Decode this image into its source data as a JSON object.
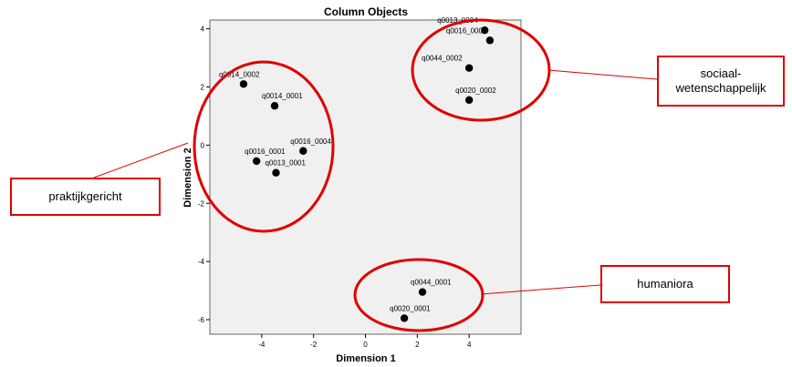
{
  "chart_data": {
    "type": "scatter",
    "title": "Column Objects",
    "xlabel": "Dimension 1",
    "ylabel": "Dimension 2",
    "xlim": [
      -6,
      6
    ],
    "ylim": [
      -6.5,
      4.3
    ],
    "xticks": [
      -4,
      -2,
      0,
      2,
      4
    ],
    "yticks": [
      4,
      2,
      0,
      -2,
      -4,
      -6
    ],
    "grid": false,
    "points": [
      {
        "label": "q0013_0004",
        "x": 4.6,
        "y": 3.95
      },
      {
        "label": "q0016_0003",
        "x": 4.8,
        "y": 3.6
      },
      {
        "label": "q0044_0002",
        "x": 4.0,
        "y": 2.65
      },
      {
        "label": "q0020_0002",
        "x": 4.0,
        "y": 1.55
      },
      {
        "label": "q0014_0002",
        "x": -4.7,
        "y": 2.1
      },
      {
        "label": "q0014_0001",
        "x": -3.5,
        "y": 1.35
      },
      {
        "label": "q0016_0004",
        "x": -2.4,
        "y": -0.2
      },
      {
        "label": "q0016_0001",
        "x": -4.2,
        "y": -0.55
      },
      {
        "label": "q0013_0001",
        "x": -3.45,
        "y": -0.95
      },
      {
        "label": "q0044_0001",
        "x": 2.2,
        "y": -5.05
      },
      {
        "label": "q0020_0001",
        "x": 1.5,
        "y": -5.95
      }
    ]
  },
  "annotations": {
    "praktijkgericht": "praktijkgericht",
    "sociaal_line1": "sociaal-",
    "sociaal_line2": "wetenschappelijk",
    "humaniora": "humaniora"
  },
  "colors": {
    "annotation": "#e00000",
    "plot_background": "#f0f0f0",
    "point": "#000000"
  }
}
